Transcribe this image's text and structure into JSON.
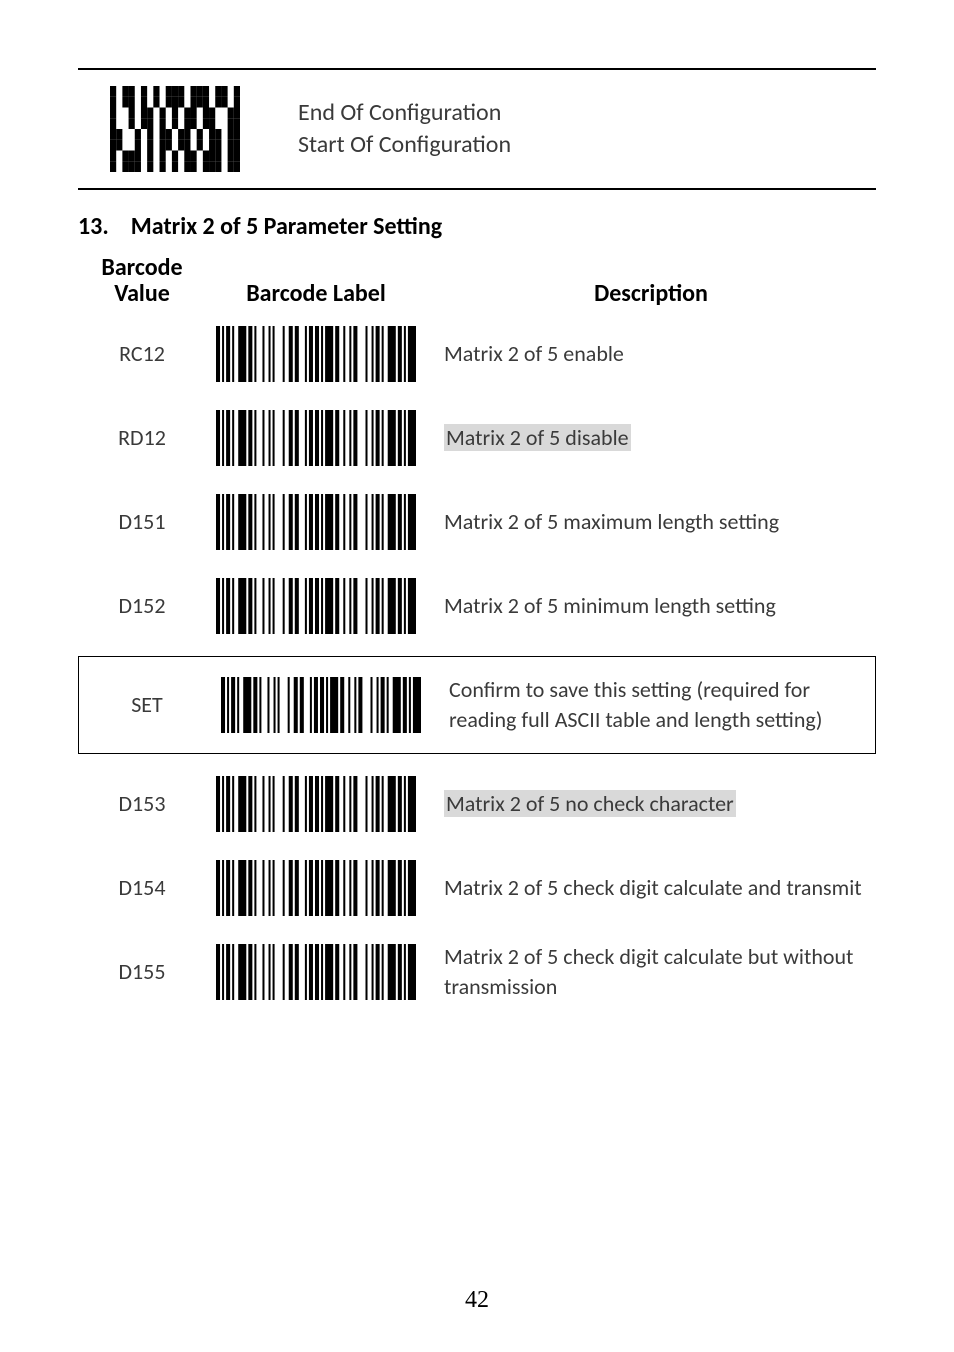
{
  "page_number": "42",
  "header": {
    "line1": "End Of Configuration",
    "line2": "Start Of Configuration"
  },
  "section": {
    "num": "13.",
    "title": "Matrix 2 of 5 Parameter Setting"
  },
  "columns": {
    "value": "Barcode Value",
    "label": "Barcode Label",
    "desc": "Description"
  },
  "rows": [
    {
      "value": "RC12",
      "desc": "Matrix 2 of 5 enable",
      "highlight": false
    },
    {
      "value": "RD12",
      "desc": "Matrix 2 of 5 disable",
      "highlight": true
    },
    {
      "value": "D151",
      "desc": "Matrix 2 of 5 maximum length setting",
      "highlight": false
    },
    {
      "value": "D152",
      "desc": "Matrix 2 of 5 minimum length setting",
      "highlight": false
    }
  ],
  "set_row": {
    "value": "SET",
    "desc": "Confirm to save this setting (required for reading full ASCII table and length setting)"
  },
  "rows2": [
    {
      "value": "D153",
      "desc": "Matrix 2 of 5 no check character",
      "highlight": true
    },
    {
      "value": "D154",
      "desc": "Matrix 2 of 5 check digit calculate and transmit",
      "highlight": false
    },
    {
      "value": "D155",
      "desc": "Matrix 2 of 5 check digit calculate but without transmission",
      "highlight": false
    }
  ],
  "barcode_pattern_1d": [
    2,
    1,
    1,
    1,
    2,
    1,
    1,
    2,
    4,
    1,
    2,
    1,
    1,
    3,
    1,
    2,
    1,
    1,
    1,
    4,
    1,
    2,
    2,
    1,
    2,
    3,
    1,
    1,
    2,
    1,
    2,
    1,
    1,
    1,
    4,
    1,
    2,
    2,
    1,
    2,
    1,
    1,
    2,
    4,
    1,
    2,
    1,
    1,
    2,
    1,
    1,
    2,
    4,
    1,
    2,
    1,
    1,
    1,
    4
  ],
  "barcode_pattern_2d": [
    [
      1,
      0,
      1,
      1,
      0,
      1,
      0,
      1,
      0,
      1,
      1,
      1,
      0,
      1,
      1,
      1,
      0,
      1,
      1,
      0,
      1
    ],
    [
      1,
      0,
      1,
      1,
      0,
      1,
      0,
      1,
      0,
      1,
      1,
      1,
      0,
      1,
      1,
      1,
      0,
      1,
      1,
      0,
      1
    ],
    [
      1,
      0,
      0,
      1,
      0,
      1,
      1,
      0,
      1,
      0,
      1,
      0,
      1,
      1,
      0,
      1,
      1,
      0,
      0,
      1,
      1
    ],
    [
      1,
      0,
      0,
      1,
      0,
      1,
      1,
      0,
      1,
      0,
      1,
      0,
      1,
      1,
      0,
      1,
      1,
      0,
      0,
      1,
      1
    ],
    [
      1,
      1,
      0,
      0,
      1,
      0,
      1,
      0,
      1,
      1,
      0,
      1,
      1,
      0,
      1,
      0,
      1,
      1,
      0,
      1,
      1
    ],
    [
      1,
      1,
      0,
      0,
      1,
      0,
      1,
      0,
      1,
      1,
      0,
      1,
      1,
      0,
      1,
      0,
      1,
      1,
      0,
      1,
      1
    ],
    [
      1,
      0,
      1,
      1,
      1,
      0,
      1,
      0,
      1,
      0,
      1,
      0,
      1,
      1,
      0,
      1,
      1,
      1,
      0,
      1,
      1
    ],
    [
      1,
      0,
      1,
      1,
      1,
      0,
      1,
      0,
      1,
      0,
      1,
      0,
      1,
      1,
      0,
      1,
      1,
      1,
      0,
      1,
      1
    ]
  ],
  "colors": {
    "text": "#3a3a3a",
    "highlight_bg": "#d9d9d9",
    "rule": "#000000"
  }
}
